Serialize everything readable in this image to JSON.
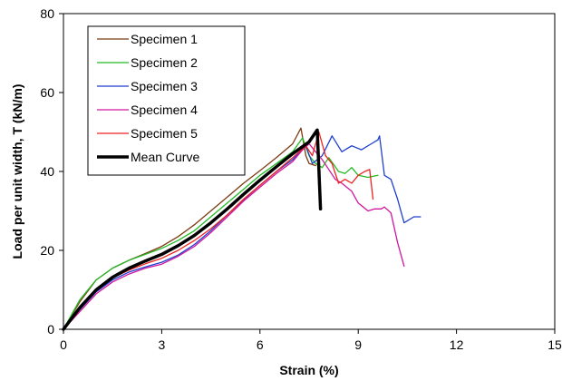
{
  "chart_data": {
    "type": "line",
    "title": "",
    "xlabel": "Strain (%)",
    "ylabel": "Load per unit width, T (kN/m)",
    "xlim": [
      0,
      15
    ],
    "ylim": [
      0,
      80
    ],
    "x_ticks": [
      "0",
      "3",
      "6",
      "9",
      "12",
      "15"
    ],
    "y_ticks": [
      "0",
      "20",
      "40",
      "60",
      "80"
    ],
    "grid": false,
    "legend_position": "top-left",
    "series": [
      {
        "name": "Specimen 1",
        "color": "#7b3a12",
        "x": [
          0,
          0.5,
          1.0,
          1.5,
          2.0,
          2.5,
          3.0,
          3.5,
          4.0,
          4.5,
          5.0,
          5.5,
          6.0,
          6.5,
          7.0,
          7.25,
          7.4,
          7.5,
          7.7
        ],
        "y": [
          0,
          7,
          12.5,
          15.5,
          17.5,
          19.2,
          21,
          23.5,
          26.5,
          30,
          33.5,
          37,
          40.2,
          43.5,
          47,
          51,
          44,
          42,
          41.5
        ]
      },
      {
        "name": "Specimen 2",
        "color": "#22bb22",
        "x": [
          0,
          0.5,
          1.0,
          1.5,
          2.0,
          2.5,
          3.0,
          3.5,
          4.0,
          4.5,
          5.0,
          5.5,
          6.0,
          6.5,
          7.0,
          7.3,
          7.5,
          7.7,
          7.9,
          8.1,
          8.4,
          8.6,
          8.8,
          9.0,
          9.3,
          9.6
        ],
        "y": [
          0,
          7.5,
          12.5,
          15.5,
          17.5,
          19,
          20.5,
          22.5,
          25,
          28.5,
          32,
          35.5,
          39,
          42,
          45,
          48.5,
          44,
          42,
          41,
          43.5,
          40,
          39.5,
          41,
          39,
          38.5,
          39
        ]
      },
      {
        "name": "Specimen 3",
        "color": "#1f3fcf",
        "x": [
          0,
          0.5,
          1.0,
          1.5,
          2.0,
          2.5,
          3.0,
          3.5,
          4.0,
          4.5,
          5.0,
          5.5,
          6.0,
          6.5,
          7.0,
          7.4,
          7.6,
          7.9,
          8.2,
          8.5,
          8.8,
          9.1,
          9.4,
          9.6,
          9.65,
          9.8,
          10.0,
          10.2,
          10.4,
          10.7,
          10.9
        ],
        "y": [
          0,
          5,
          9.5,
          12.5,
          14.5,
          15.8,
          17,
          18.8,
          21.5,
          25,
          29,
          32.8,
          36.5,
          40,
          43,
          46.5,
          42,
          44,
          49,
          45,
          46.5,
          45.5,
          47,
          48,
          49,
          39,
          38,
          33,
          27,
          28.5,
          28.5
        ]
      },
      {
        "name": "Specimen 4",
        "color": "#d0169e",
        "x": [
          0,
          0.5,
          1.0,
          1.5,
          2.0,
          2.5,
          3.0,
          3.5,
          4.0,
          4.5,
          5.0,
          5.5,
          6.0,
          6.5,
          7.0,
          7.3,
          7.5,
          7.7,
          7.9,
          8.1,
          8.3,
          8.5,
          8.8,
          9.0,
          9.3,
          9.5,
          9.7,
          9.8,
          10.0,
          10.2,
          10.4
        ],
        "y": [
          0,
          4.5,
          9,
          12,
          14,
          15.5,
          16.5,
          18.5,
          21,
          24.5,
          28.5,
          32.5,
          36,
          39.5,
          42.5,
          45.5,
          47,
          45,
          43,
          40.5,
          38,
          37,
          35,
          32,
          30,
          30.5,
          30.5,
          31,
          29.5,
          22,
          16
        ]
      },
      {
        "name": "Specimen 5",
        "color": "#ee2222",
        "x": [
          0,
          0.5,
          1.0,
          1.5,
          2.0,
          2.5,
          3.0,
          3.5,
          4.0,
          4.5,
          5.0,
          5.5,
          6.0,
          6.5,
          7.0,
          7.4,
          7.6,
          7.8,
          8.0,
          8.2,
          8.4,
          8.6,
          8.8,
          9.0,
          9.2,
          9.35,
          9.45
        ],
        "y": [
          0,
          5.5,
          10,
          13,
          15,
          16.6,
          18,
          20,
          22.5,
          25.5,
          29,
          33,
          36.5,
          40,
          43.5,
          46.5,
          44,
          50,
          44,
          42,
          37,
          38,
          37,
          39,
          40,
          40.5,
          33
        ]
      },
      {
        "name": "Mean Curve",
        "color": "#000000",
        "x": [
          0,
          0.5,
          1.0,
          1.5,
          2.0,
          2.5,
          3.0,
          3.5,
          4.0,
          4.5,
          5.0,
          5.5,
          6.0,
          6.5,
          7.0,
          7.5,
          7.75,
          7.85
        ],
        "y": [
          0,
          5.5,
          10,
          13.2,
          15.5,
          17.3,
          19,
          21.2,
          23.8,
          27,
          30.5,
          34.2,
          37.8,
          41.2,
          44.5,
          47.5,
          50.5,
          30.5
        ]
      }
    ]
  }
}
